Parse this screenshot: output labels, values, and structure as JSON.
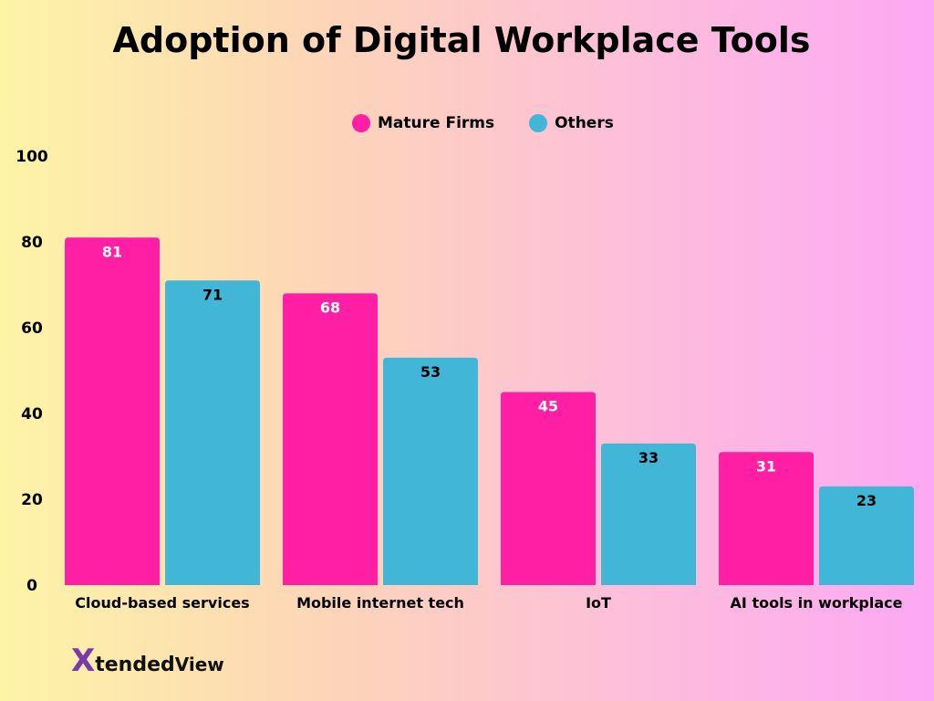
{
  "chart_data": {
    "type": "bar",
    "title": "Adoption of Digital Workplace Tools",
    "categories": [
      "Cloud-based services",
      "Mobile internet tech",
      "IoT",
      "AI tools in workplace"
    ],
    "series": [
      {
        "name": "Mature Firms",
        "values": [
          81,
          68,
          45,
          31
        ],
        "color": "#ff1fa5",
        "label_color": "#ffffff"
      },
      {
        "name": "Others",
        "values": [
          71,
          53,
          33,
          23
        ],
        "color": "#42b6d6",
        "label_color": "#000000"
      }
    ],
    "ylim": [
      0,
      100
    ],
    "yticks": [
      0,
      20,
      40,
      60,
      80,
      100
    ],
    "grid": false,
    "legend": "top-center",
    "xlabel": "",
    "ylabel": ""
  },
  "logo": {
    "text_x": "X",
    "text_tended": "tended",
    "text_view": "View"
  }
}
